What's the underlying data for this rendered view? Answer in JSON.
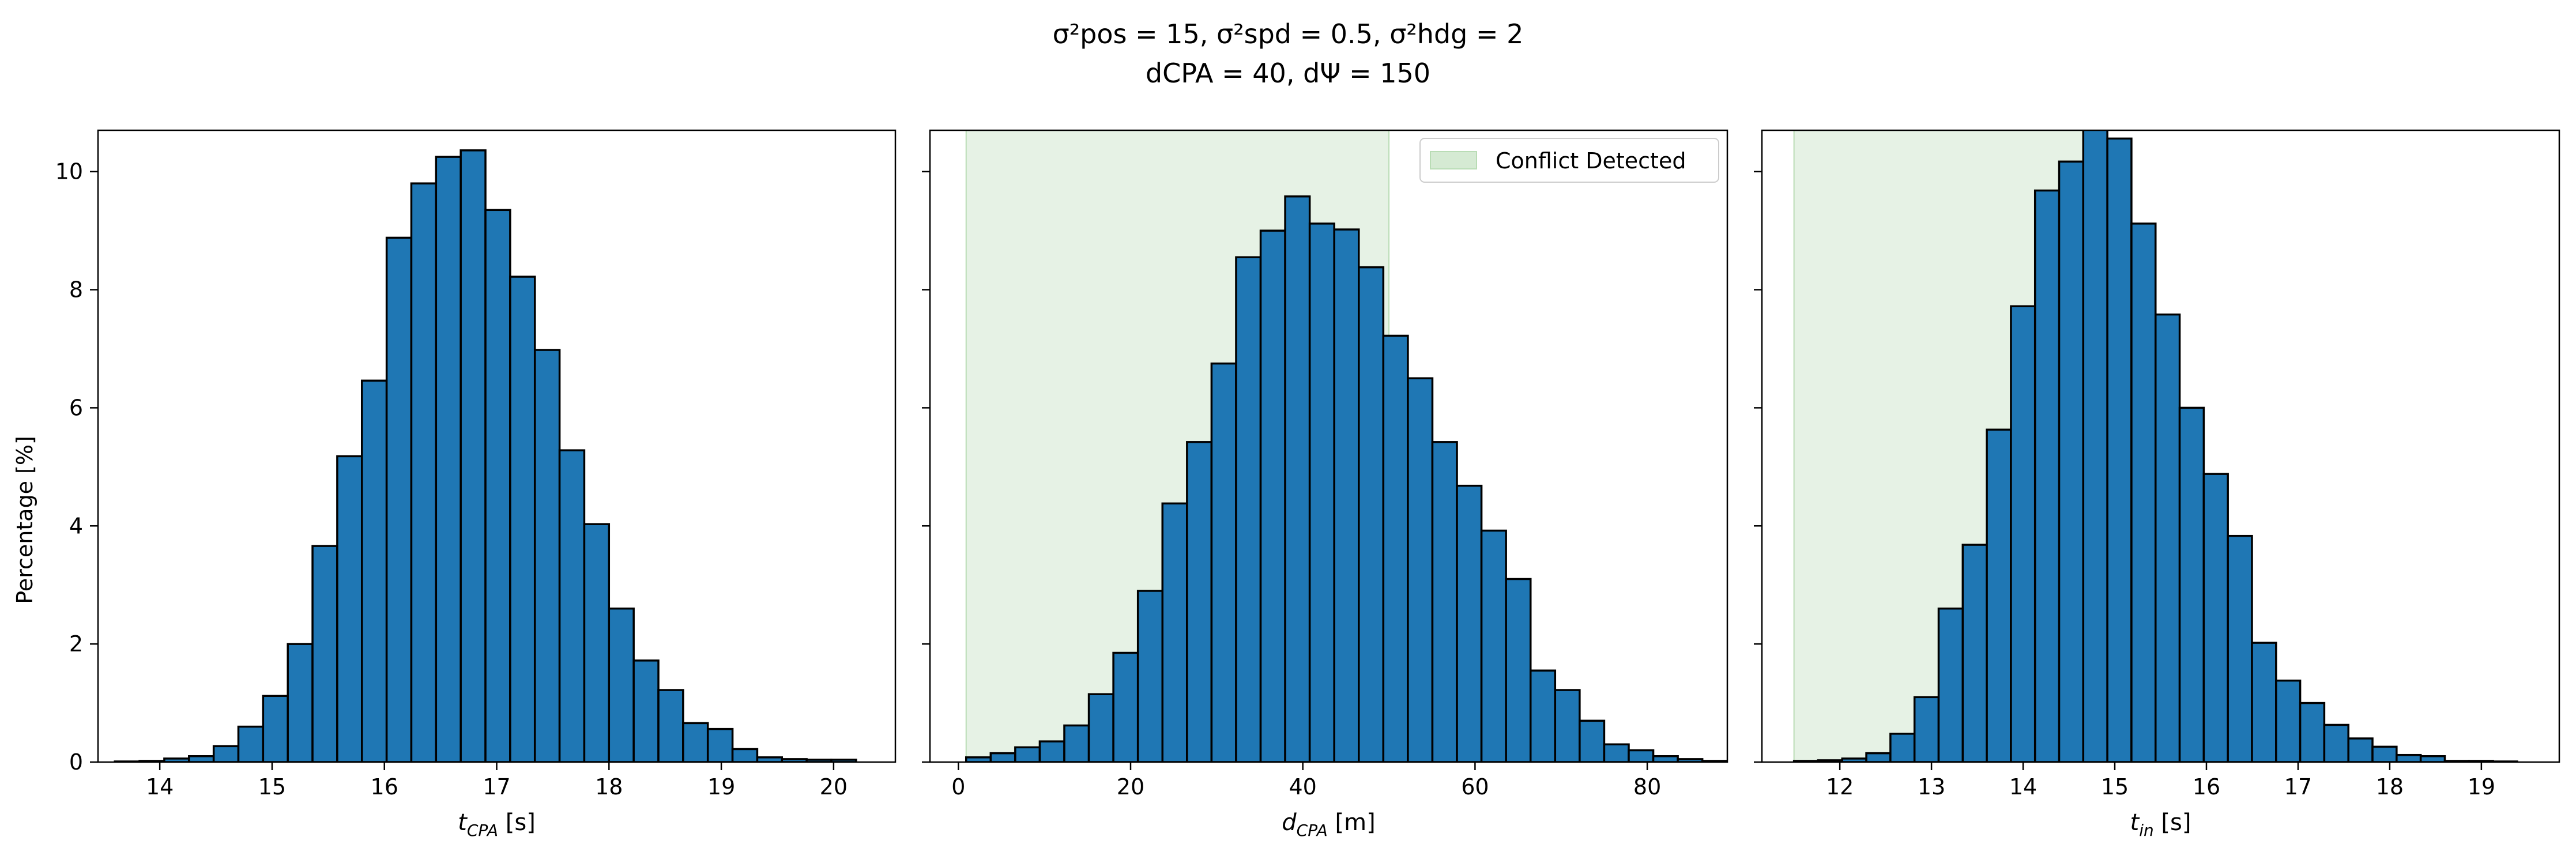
{
  "figure": {
    "title_line1": "σ²pos = 15, σ²spd = 0.5, σ²hdg = 2",
    "title_line2": "dCPA = 40, dΨ = 150",
    "ylabel": "Percentage [%]"
  },
  "colors": {
    "bar": "#1f77b4",
    "bar_edge": "#000000",
    "shade": "#d5ead3"
  },
  "chart_data": [
    {
      "type": "bar",
      "xlabel_main": "t",
      "xlabel_sub": "CPA",
      "xlabel_unit": " [s]",
      "xlim": [
        13.45,
        20.55
      ],
      "ylim": [
        0,
        10.7
      ],
      "xticks": [
        14,
        15,
        16,
        17,
        18,
        19,
        20
      ],
      "yticks": [
        0,
        2,
        4,
        6,
        8,
        10
      ],
      "bin_start": 13.6,
      "bin_width": 0.22,
      "values": [
        0.01,
        0.02,
        0.06,
        0.1,
        0.27,
        0.6,
        1.12,
        2.0,
        3.66,
        5.18,
        6.46,
        8.88,
        9.8,
        10.25,
        10.36,
        9.35,
        8.22,
        6.98,
        5.28,
        4.03,
        2.6,
        1.72,
        1.22,
        0.66,
        0.56,
        0.22,
        0.08,
        0.05,
        0.04,
        0.04
      ]
    },
    {
      "type": "bar",
      "xlabel_main": "d",
      "xlabel_sub": "CPA",
      "xlabel_unit": " [m]",
      "xlim": [
        -3.3,
        89.3
      ],
      "ylim": [
        0,
        10.7
      ],
      "xticks": [
        0,
        20,
        40,
        60,
        80
      ],
      "yticks": [
        0,
        2,
        4,
        6,
        8,
        10
      ],
      "bin_start": 0.9,
      "bin_width": 2.85,
      "values": [
        0.08,
        0.15,
        0.25,
        0.35,
        0.62,
        1.15,
        1.85,
        2.9,
        4.38,
        5.42,
        6.75,
        8.55,
        9.0,
        9.58,
        9.12,
        9.02,
        8.38,
        7.22,
        6.5,
        5.42,
        4.68,
        3.92,
        3.1,
        1.55,
        1.22,
        0.7,
        0.3,
        0.2,
        0.1,
        0.05,
        0.02
      ],
      "shade_range": [
        0.9,
        50
      ],
      "legend_label": "Conflict Detected"
    },
    {
      "type": "bar",
      "xlabel_main": "t",
      "xlabel_sub": "in",
      "xlabel_unit": " [s]",
      "xlim": [
        11.15,
        19.85
      ],
      "ylim": [
        0,
        10.7
      ],
      "xticks": [
        12,
        13,
        14,
        15,
        16,
        17,
        18,
        19
      ],
      "yticks": [
        0,
        2,
        4,
        6,
        8,
        10
      ],
      "bin_start": 11.5,
      "bin_width": 0.263,
      "values": [
        0.02,
        0.03,
        0.06,
        0.15,
        0.48,
        1.1,
        2.6,
        3.68,
        5.63,
        7.72,
        9.68,
        10.17,
        10.72,
        10.56,
        9.12,
        7.58,
        6.0,
        4.88,
        3.83,
        2.02,
        1.38,
        1.0,
        0.63,
        0.4,
        0.26,
        0.12,
        0.1,
        0.02,
        0.02,
        0.01
      ]
    }
  ]
}
